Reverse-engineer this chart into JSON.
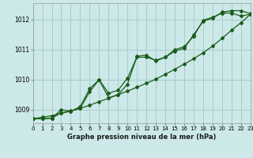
{
  "title": "Graphe pression niveau de la mer (hPa)",
  "background_color": "#cce8e8",
  "grid_color": "#aacccc",
  "line_color": "#1a5c1a",
  "xlim": [
    0,
    23
  ],
  "ylim": [
    1008.55,
    1012.55
  ],
  "yticks": [
    1009,
    1010,
    1011,
    1012
  ],
  "xticks": [
    0,
    1,
    2,
    3,
    4,
    5,
    6,
    7,
    8,
    9,
    10,
    11,
    12,
    13,
    14,
    15,
    16,
    17,
    18,
    19,
    20,
    21,
    22,
    23
  ],
  "series_zigzag1": [
    1008.7,
    1008.7,
    1008.72,
    1009.0,
    1008.95,
    1009.05,
    1009.6,
    1010.0,
    1009.55,
    1009.65,
    1010.05,
    1010.75,
    1010.75,
    1010.65,
    1010.75,
    1010.95,
    1011.05,
    1011.5,
    1011.95,
    1012.05,
    1012.25,
    1012.3,
    1012.3,
    1012.2
  ],
  "series_zigzag2": [
    1008.7,
    1008.7,
    1008.72,
    1008.9,
    1008.95,
    1009.1,
    1009.7,
    1010.0,
    1009.4,
    1009.5,
    1009.85,
    1010.78,
    1010.82,
    1010.62,
    1010.75,
    1011.0,
    1011.1,
    1011.45,
    1011.98,
    1012.08,
    1012.22,
    1012.22,
    1012.12,
    1012.18
  ],
  "series_smooth": [
    1008.7,
    1008.75,
    1008.8,
    1008.88,
    1008.96,
    1009.05,
    1009.15,
    1009.27,
    1009.38,
    1009.5,
    1009.62,
    1009.75,
    1009.88,
    1010.02,
    1010.18,
    1010.35,
    1010.52,
    1010.7,
    1010.9,
    1011.12,
    1011.38,
    1011.65,
    1011.9,
    1012.18
  ]
}
